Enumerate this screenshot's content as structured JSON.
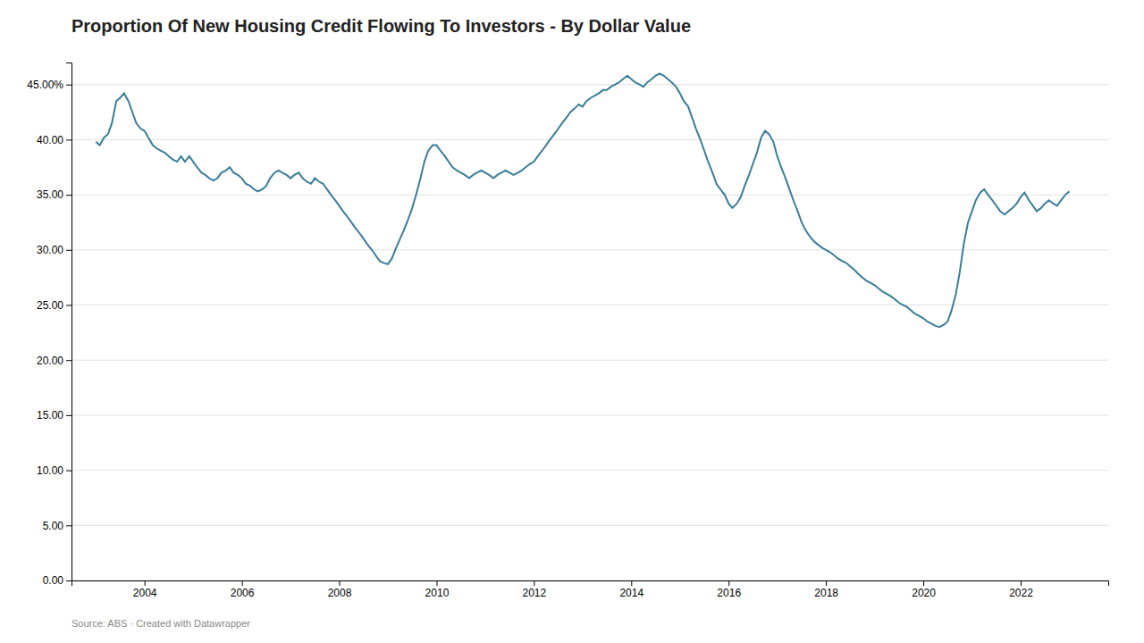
{
  "chart_data": {
    "type": "line",
    "title": "Proportion Of New Housing Credit Flowing To Investors - By Dollar Value",
    "annotations": [
      "Source: ABS · Created with Datawrapper"
    ],
    "color": "#3a7d99",
    "grid": true,
    "xlim": [
      2002.5,
      2023.8
    ],
    "xticks": [
      2004,
      2006,
      2008,
      2010,
      2012,
      2014,
      2016,
      2018,
      2020,
      2022
    ],
    "ylim": [
      0,
      47
    ],
    "yticks": [
      {
        "value": 0.0,
        "label": "0.00"
      },
      {
        "value": 5.0,
        "label": "5.00"
      },
      {
        "value": 10.0,
        "label": "10.00"
      },
      {
        "value": 15.0,
        "label": "15.00"
      },
      {
        "value": 20.0,
        "label": "20.00"
      },
      {
        "value": 25.0,
        "label": "25.00"
      },
      {
        "value": 30.0,
        "label": "30.00"
      },
      {
        "value": 35.0,
        "label": "35.00"
      },
      {
        "value": 40.0,
        "label": "40.00"
      },
      {
        "value": 45.0,
        "label": "45.00%"
      }
    ],
    "x": [
      2003.0,
      2003.08,
      2003.17,
      2003.25,
      2003.33,
      2003.42,
      2003.5,
      2003.58,
      2003.67,
      2003.75,
      2003.83,
      2003.92,
      2004.0,
      2004.08,
      2004.17,
      2004.25,
      2004.33,
      2004.42,
      2004.5,
      2004.58,
      2004.67,
      2004.75,
      2004.83,
      2004.92,
      2005.0,
      2005.08,
      2005.17,
      2005.25,
      2005.33,
      2005.42,
      2005.5,
      2005.58,
      2005.67,
      2005.75,
      2005.83,
      2005.92,
      2006.0,
      2006.08,
      2006.17,
      2006.25,
      2006.33,
      2006.42,
      2006.5,
      2006.58,
      2006.67,
      2006.75,
      2006.83,
      2006.92,
      2007.0,
      2007.08,
      2007.17,
      2007.25,
      2007.33,
      2007.42,
      2007.5,
      2007.58,
      2007.67,
      2007.75,
      2007.83,
      2007.92,
      2008.0,
      2008.08,
      2008.17,
      2008.25,
      2008.33,
      2008.42,
      2008.5,
      2008.58,
      2008.67,
      2008.75,
      2008.83,
      2008.92,
      2009.0,
      2009.08,
      2009.17,
      2009.25,
      2009.33,
      2009.42,
      2009.5,
      2009.58,
      2009.67,
      2009.75,
      2009.83,
      2009.92,
      2010.0,
      2010.08,
      2010.17,
      2010.25,
      2010.33,
      2010.42,
      2010.5,
      2010.58,
      2010.67,
      2010.75,
      2010.83,
      2010.92,
      2011.0,
      2011.08,
      2011.17,
      2011.25,
      2011.33,
      2011.42,
      2011.5,
      2011.58,
      2011.67,
      2011.75,
      2011.83,
      2011.92,
      2012.0,
      2012.08,
      2012.17,
      2012.25,
      2012.33,
      2012.42,
      2012.5,
      2012.58,
      2012.67,
      2012.75,
      2012.83,
      2012.92,
      2013.0,
      2013.08,
      2013.17,
      2013.25,
      2013.33,
      2013.42,
      2013.5,
      2013.58,
      2013.67,
      2013.75,
      2013.83,
      2013.92,
      2014.0,
      2014.08,
      2014.17,
      2014.25,
      2014.33,
      2014.42,
      2014.5,
      2014.58,
      2014.67,
      2014.75,
      2014.83,
      2014.92,
      2015.0,
      2015.08,
      2015.17,
      2015.25,
      2015.33,
      2015.42,
      2015.5,
      2015.58,
      2015.67,
      2015.75,
      2015.83,
      2015.92,
      2016.0,
      2016.08,
      2016.17,
      2016.25,
      2016.33,
      2016.42,
      2016.5,
      2016.58,
      2016.67,
      2016.75,
      2016.83,
      2016.92,
      2017.0,
      2017.08,
      2017.17,
      2017.25,
      2017.33,
      2017.42,
      2017.5,
      2017.58,
      2017.67,
      2017.75,
      2017.83,
      2017.92,
      2018.0,
      2018.08,
      2018.17,
      2018.25,
      2018.33,
      2018.42,
      2018.5,
      2018.58,
      2018.67,
      2018.75,
      2018.83,
      2018.92,
      2019.0,
      2019.08,
      2019.17,
      2019.25,
      2019.33,
      2019.42,
      2019.5,
      2019.58,
      2019.67,
      2019.75,
      2019.83,
      2019.92,
      2020.0,
      2020.08,
      2020.17,
      2020.25,
      2020.33,
      2020.42,
      2020.5,
      2020.58,
      2020.67,
      2020.75,
      2020.83,
      2020.92,
      2021.0,
      2021.08,
      2021.17,
      2021.25,
      2021.33,
      2021.42,
      2021.5,
      2021.58,
      2021.67,
      2021.75,
      2021.83,
      2021.92,
      2022.0,
      2022.08,
      2022.17,
      2022.25,
      2022.33,
      2022.42,
      2022.5,
      2022.58,
      2022.67,
      2022.75,
      2022.83,
      2022.92,
      2023.0
    ],
    "values": [
      39.8,
      39.5,
      40.2,
      40.5,
      41.5,
      43.5,
      43.8,
      44.2,
      43.5,
      42.5,
      41.5,
      41.0,
      40.8,
      40.2,
      39.5,
      39.2,
      39.0,
      38.8,
      38.5,
      38.2,
      38.0,
      38.5,
      38.0,
      38.5,
      38.0,
      37.5,
      37.0,
      36.8,
      36.5,
      36.3,
      36.5,
      37.0,
      37.2,
      37.5,
      37.0,
      36.8,
      36.5,
      36.0,
      35.8,
      35.5,
      35.3,
      35.5,
      35.8,
      36.5,
      37.0,
      37.2,
      37.0,
      36.8,
      36.5,
      36.8,
      37.0,
      36.5,
      36.2,
      36.0,
      36.5,
      36.2,
      36.0,
      35.5,
      35.0,
      34.5,
      34.0,
      33.5,
      33.0,
      32.5,
      32.0,
      31.5,
      31.0,
      30.5,
      30.0,
      29.5,
      29.0,
      28.8,
      28.7,
      29.2,
      30.2,
      31.0,
      31.8,
      32.8,
      33.8,
      35.0,
      36.5,
      38.0,
      39.0,
      39.5,
      39.5,
      39.0,
      38.5,
      38.0,
      37.5,
      37.2,
      37.0,
      36.8,
      36.5,
      36.8,
      37.0,
      37.2,
      37.0,
      36.8,
      36.5,
      36.8,
      37.0,
      37.2,
      37.0,
      36.8,
      37.0,
      37.2,
      37.5,
      37.8,
      38.0,
      38.5,
      39.0,
      39.5,
      40.0,
      40.5,
      41.0,
      41.5,
      42.0,
      42.5,
      42.8,
      43.2,
      43.0,
      43.5,
      43.8,
      44.0,
      44.2,
      44.5,
      44.5,
      44.8,
      45.0,
      45.2,
      45.5,
      45.8,
      45.5,
      45.2,
      45.0,
      44.8,
      45.2,
      45.5,
      45.8,
      46.0,
      45.8,
      45.5,
      45.2,
      44.8,
      44.2,
      43.5,
      43.0,
      42.0,
      41.0,
      40.0,
      39.0,
      38.0,
      37.0,
      36.0,
      35.5,
      35.0,
      34.2,
      33.8,
      34.2,
      34.8,
      35.8,
      36.8,
      37.8,
      38.8,
      40.2,
      40.8,
      40.5,
      39.8,
      38.5,
      37.5,
      36.5,
      35.5,
      34.5,
      33.5,
      32.5,
      31.8,
      31.2,
      30.8,
      30.5,
      30.2,
      30.0,
      29.8,
      29.5,
      29.2,
      29.0,
      28.8,
      28.5,
      28.2,
      27.8,
      27.5,
      27.2,
      27.0,
      26.8,
      26.5,
      26.2,
      26.0,
      25.8,
      25.5,
      25.2,
      25.0,
      24.8,
      24.5,
      24.2,
      24.0,
      23.8,
      23.5,
      23.3,
      23.1,
      23.0,
      23.2,
      23.5,
      24.5,
      26.0,
      28.0,
      30.5,
      32.5,
      33.5,
      34.5,
      35.2,
      35.5,
      35.0,
      34.5,
      34.0,
      33.5,
      33.2,
      33.5,
      33.8,
      34.2,
      34.8,
      35.2,
      34.5,
      34.0,
      33.5,
      33.8,
      34.2,
      34.5,
      34.2,
      34.0,
      34.5,
      35.0,
      35.3
    ]
  }
}
